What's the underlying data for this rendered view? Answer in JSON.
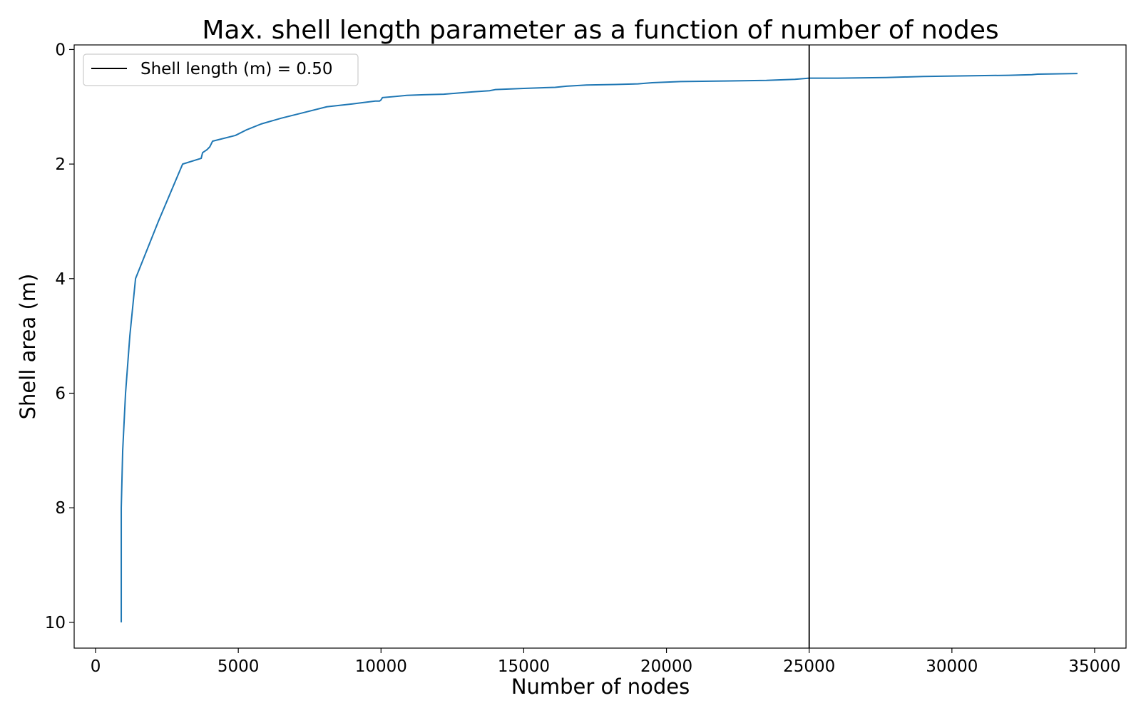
{
  "chart_data": {
    "type": "line",
    "title": "Max. shell length parameter as a function of number of nodes",
    "xlabel": "Number of nodes",
    "ylabel": "Shell area (m)",
    "xlim": [
      -750,
      36100
    ],
    "ylim": [
      10.45,
      -0.08
    ],
    "y_inverted": true,
    "grid": false,
    "legend_placement": "upper-left",
    "x_ticks": [
      {
        "value": 0,
        "label": "0"
      },
      {
        "value": 5000,
        "label": "5000"
      },
      {
        "value": 10000,
        "label": "10000"
      },
      {
        "value": 15000,
        "label": "15000"
      },
      {
        "value": 20000,
        "label": "20000"
      },
      {
        "value": 25000,
        "label": "25000"
      },
      {
        "value": 30000,
        "label": "30000"
      },
      {
        "value": 35000,
        "label": "35000"
      }
    ],
    "y_ticks": [
      {
        "value": 0,
        "label": "0"
      },
      {
        "value": 2,
        "label": "2"
      },
      {
        "value": 4,
        "label": "4"
      },
      {
        "value": 6,
        "label": "6"
      },
      {
        "value": 8,
        "label": "8"
      },
      {
        "value": 10,
        "label": "10"
      }
    ],
    "series": [
      {
        "color": "#1f77b4",
        "x": [
          900,
          900,
          950,
          1050,
          1200,
          1400,
          2200,
          3050,
          3700,
          3750,
          3900,
          4000,
          4100,
          4900,
          5300,
          5800,
          6500,
          7300,
          8100,
          9000,
          9800,
          9950,
          10000,
          10050,
          10500,
          10900,
          11500,
          12200,
          12700,
          13200,
          13800,
          14000,
          15000,
          16100,
          16500,
          17200,
          18200,
          19000,
          19500,
          20500,
          22000,
          23500,
          24500,
          25000,
          26000,
          27700,
          29000,
          30500,
          32000,
          32800,
          33000,
          34400
        ],
        "y": [
          10.0,
          8.0,
          7.0,
          6.0,
          5.0,
          4.0,
          3.0,
          2.0,
          1.9,
          1.8,
          1.75,
          1.7,
          1.6,
          1.5,
          1.4,
          1.3,
          1.2,
          1.1,
          1.0,
          0.95,
          0.9,
          0.9,
          0.88,
          0.84,
          0.82,
          0.8,
          0.79,
          0.78,
          0.76,
          0.74,
          0.72,
          0.7,
          0.68,
          0.66,
          0.64,
          0.62,
          0.61,
          0.6,
          0.58,
          0.56,
          0.55,
          0.54,
          0.52,
          0.5,
          0.5,
          0.49,
          0.47,
          0.46,
          0.45,
          0.44,
          0.43,
          0.42
        ]
      }
    ],
    "vline": {
      "x": 25000,
      "color": "#000000",
      "label": "Shell length (m) = 0.50"
    }
  }
}
